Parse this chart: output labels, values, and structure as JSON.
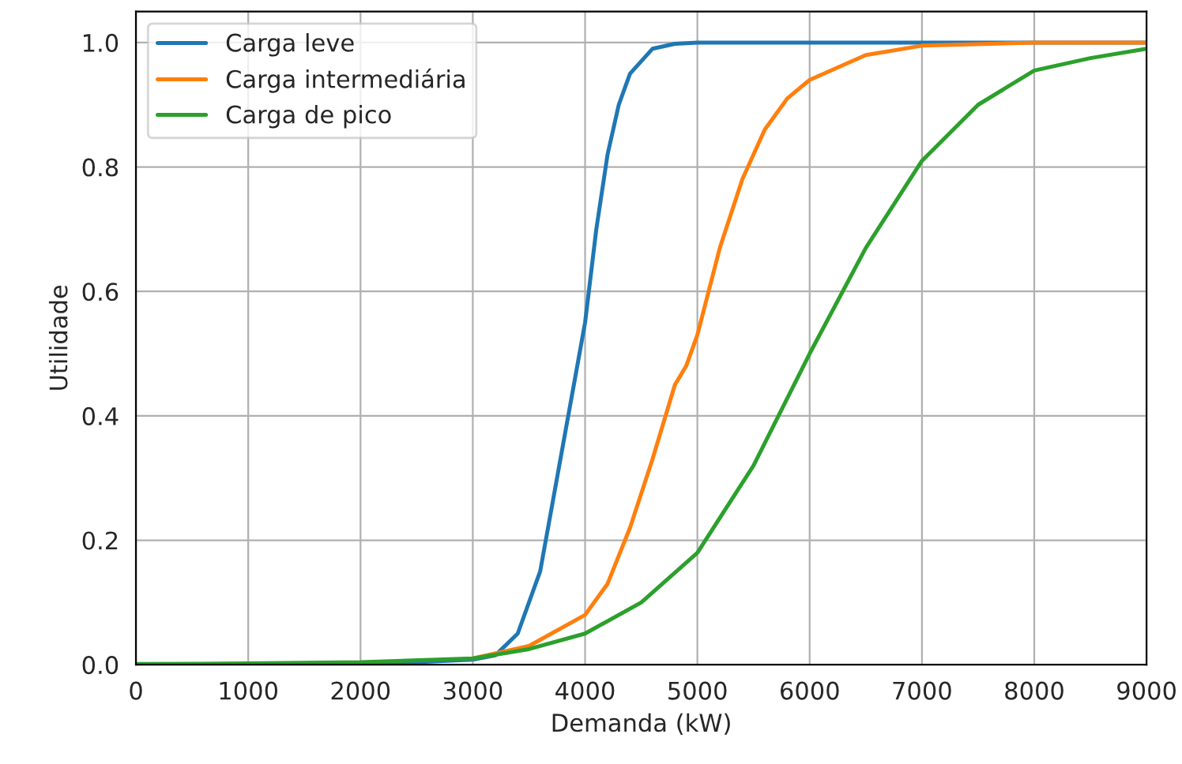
{
  "chart_data": {
    "type": "line",
    "xlabel": "Demanda (kW)",
    "ylabel": "Utilidade",
    "xlim": [
      0,
      9000
    ],
    "ylim": [
      0,
      1.05
    ],
    "xticks": [
      0,
      1000,
      2000,
      3000,
      4000,
      5000,
      6000,
      7000,
      8000,
      9000
    ],
    "yticks": [
      {
        "value": 0,
        "label": "0.0"
      },
      {
        "value": 0.2,
        "label": "0.2"
      },
      {
        "value": 0.4,
        "label": "0.4"
      },
      {
        "value": 0.6,
        "label": "0.6"
      },
      {
        "value": 0.8,
        "label": "0.8"
      },
      {
        "value": 1,
        "label": "1.0"
      }
    ],
    "grid": true,
    "legend": "top left",
    "series": [
      {
        "name": "Carga leve",
        "color": "#1f77b4",
        "x": [
          2000,
          2500,
          3000,
          3200,
          3400,
          3600,
          3700,
          3800,
          3900,
          4000,
          4100,
          4200,
          4300,
          4400,
          4600,
          4800,
          5000,
          9000
        ],
        "values": [
          0.002,
          0.004,
          0.008,
          0.015,
          0.05,
          0.15,
          0.25,
          0.35,
          0.45,
          0.55,
          0.7,
          0.82,
          0.9,
          0.95,
          0.99,
          0.998,
          1,
          1
        ]
      },
      {
        "name": "Carga intermediária",
        "color": "#ff7f0e",
        "x": [
          3000,
          3500,
          4000,
          4200,
          4400,
          4600,
          4800,
          4900,
          5000,
          5200,
          5400,
          5600,
          5800,
          6000,
          6500,
          7000,
          8000,
          9000
        ],
        "values": [
          0.01,
          0.03,
          0.08,
          0.13,
          0.22,
          0.33,
          0.45,
          0.48,
          0.53,
          0.67,
          0.78,
          0.86,
          0.91,
          0.94,
          0.98,
          0.995,
          1,
          1
        ]
      },
      {
        "name": "Carga de pico",
        "color": "#2ca02c",
        "x": [
          0,
          1000,
          2000,
          3000,
          3500,
          4000,
          4500,
          5000,
          5500,
          6000,
          6500,
          7000,
          7500,
          8000,
          8500,
          9000
        ],
        "values": [
          0.001,
          0.002,
          0.004,
          0.01,
          0.025,
          0.05,
          0.1,
          0.18,
          0.32,
          0.5,
          0.67,
          0.81,
          0.9,
          0.955,
          0.975,
          0.99
        ]
      }
    ]
  }
}
